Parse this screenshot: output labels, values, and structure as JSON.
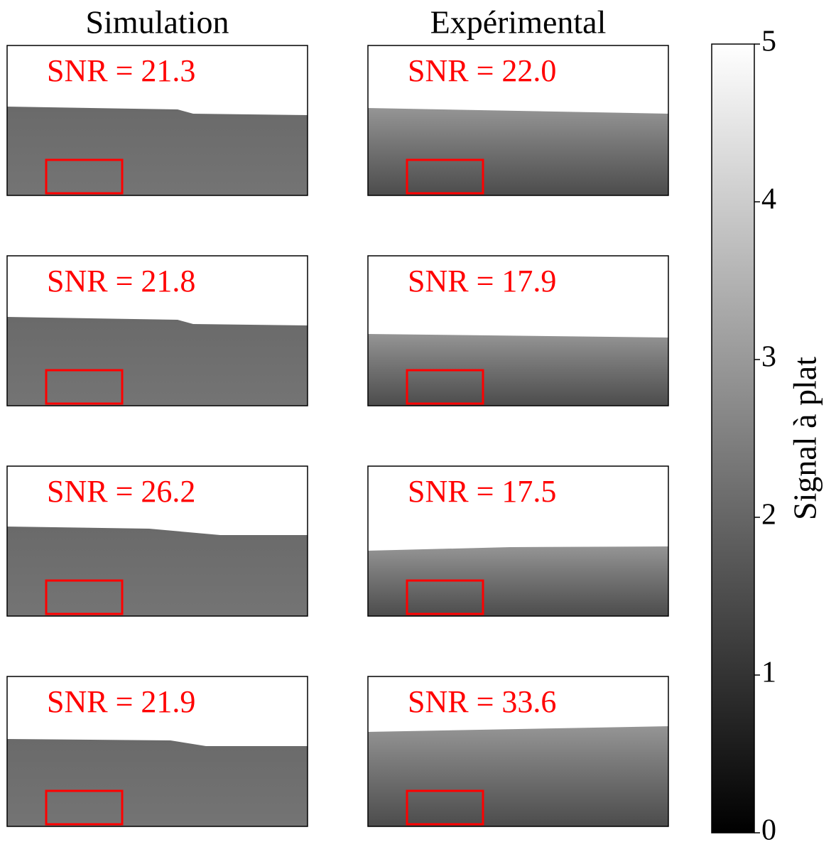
{
  "chart_data": {
    "type": "image-grid",
    "columns": [
      {
        "title": "Simulation",
        "panels": [
          {
            "label": "SNR = 21.3"
          },
          {
            "label": "SNR = 21.8"
          },
          {
            "label": "SNR = 26.2"
          },
          {
            "label": "SNR = 21.9"
          }
        ]
      },
      {
        "title": "Expérimental",
        "panels": [
          {
            "label": "SNR = 22.0"
          },
          {
            "label": "SNR = 17.9"
          },
          {
            "label": "SNR = 17.5"
          },
          {
            "label": "SNR = 33.6"
          }
        ]
      }
    ],
    "colorbar": {
      "label": "Signal à plat",
      "colormap": "gray",
      "ylim": [
        0,
        5
      ],
      "yticks": [
        0,
        1,
        2,
        3,
        4,
        5
      ]
    }
  }
}
